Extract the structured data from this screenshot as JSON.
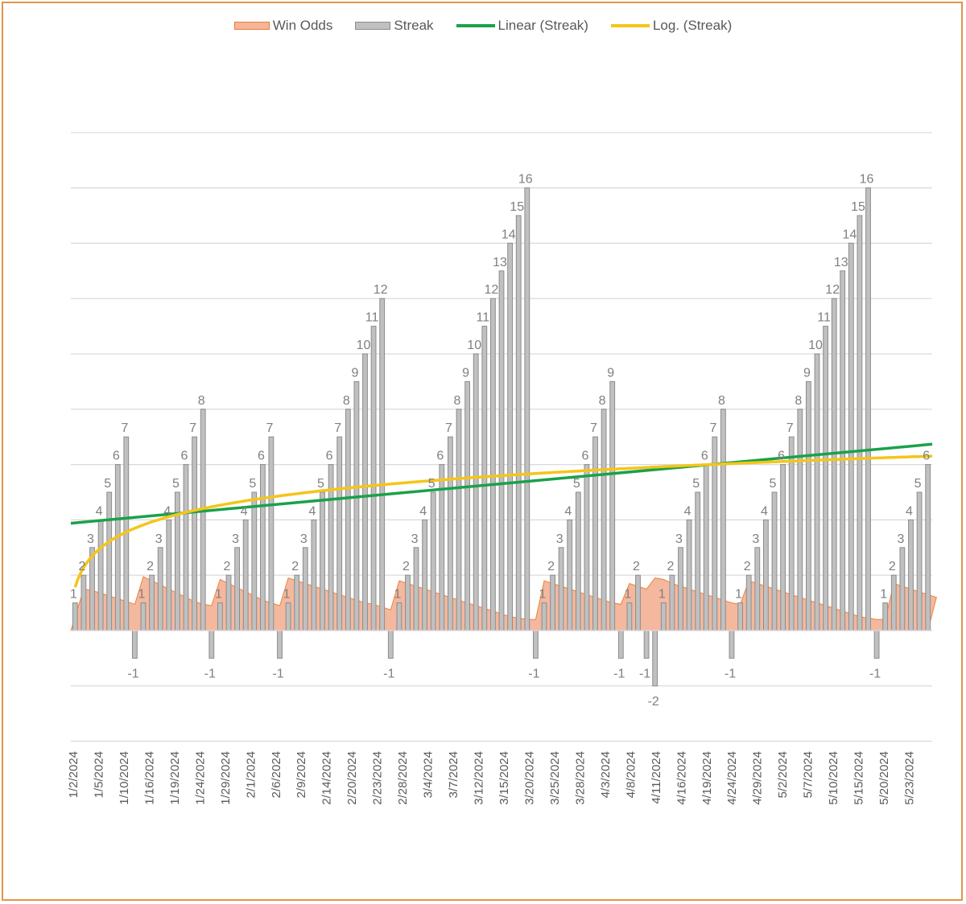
{
  "chart_data": {
    "type": "bar",
    "title": "",
    "xlabel": "",
    "ylabel": "",
    "ylim": [
      -4,
      18
    ],
    "legend_position": "top",
    "colors": {
      "win_odds_fill": "#f4b599",
      "win_odds_stroke": "#ed7d31",
      "streak_fill": "#c0c0c0",
      "streak_stroke": "#8c8c8c",
      "linear": "#1aa14a",
      "log": "#f5c518",
      "grid": "#d9d9d9",
      "label": "#7f7f7f"
    },
    "legend": [
      "Win Odds",
      "Streak",
      "Linear (Streak)",
      "Log. (Streak)"
    ],
    "tick_labels": [
      "1/2/2024",
      "1/5/2024",
      "1/10/2024",
      "1/16/2024",
      "1/19/2024",
      "1/24/2024",
      "1/29/2024",
      "2/1/2024",
      "2/6/2024",
      "2/9/2024",
      "2/14/2024",
      "2/20/2024",
      "2/23/2024",
      "2/28/2024",
      "3/4/2024",
      "3/7/2024",
      "3/12/2024",
      "3/15/2024",
      "3/20/2024",
      "3/25/2024",
      "3/28/2024",
      "4/3/2024",
      "4/8/2024",
      "4/11/2024",
      "4/16/2024",
      "4/19/2024",
      "4/24/2024",
      "4/29/2024",
      "5/2/2024",
      "5/7/2024",
      "5/10/2024",
      "5/15/2024",
      "5/20/2024",
      "5/23/2024"
    ],
    "streak": [
      1,
      2,
      3,
      4,
      5,
      6,
      7,
      -1,
      1,
      2,
      3,
      4,
      5,
      6,
      7,
      8,
      -1,
      1,
      2,
      3,
      4,
      5,
      6,
      7,
      -1,
      1,
      2,
      3,
      4,
      5,
      6,
      7,
      8,
      9,
      10,
      11,
      12,
      -1,
      1,
      2,
      3,
      4,
      5,
      6,
      7,
      8,
      9,
      10,
      11,
      12,
      13,
      14,
      15,
      16,
      -1,
      1,
      2,
      3,
      4,
      5,
      6,
      7,
      8,
      9,
      -1,
      1,
      2,
      -1,
      -2,
      1,
      2,
      3,
      4,
      5,
      6,
      7,
      8,
      -1,
      1,
      2,
      3,
      4,
      5,
      6,
      7,
      8,
      9,
      10,
      11,
      12,
      13,
      14,
      15,
      16,
      -1,
      1,
      2,
      3,
      4,
      5,
      6
    ],
    "win_odds": [
      0.5,
      1.5,
      1.45,
      1.35,
      1.25,
      1.15,
      1.05,
      0.95,
      1.95,
      1.8,
      1.65,
      1.5,
      1.35,
      1.2,
      1.05,
      0.95,
      0.9,
      1.85,
      1.7,
      1.55,
      1.4,
      1.25,
      1.1,
      1.0,
      0.9,
      1.9,
      1.8,
      1.7,
      1.6,
      1.5,
      1.4,
      1.3,
      1.2,
      1.1,
      1.0,
      0.95,
      0.85,
      0.75,
      1.8,
      1.7,
      1.6,
      1.5,
      1.4,
      1.3,
      1.2,
      1.1,
      1.0,
      0.9,
      0.8,
      0.7,
      0.6,
      0.5,
      0.45,
      0.4,
      0.4,
      1.8,
      1.7,
      1.6,
      1.5,
      1.4,
      1.3,
      1.2,
      1.1,
      1.0,
      0.95,
      1.7,
      1.6,
      1.5,
      1.9,
      1.85,
      1.7,
      1.6,
      1.5,
      1.4,
      1.3,
      1.2,
      1.1,
      1.0,
      0.95,
      1.8,
      1.7,
      1.6,
      1.5,
      1.4,
      1.3,
      1.2,
      1.1,
      1.0,
      0.9,
      0.8,
      0.7,
      0.6,
      0.5,
      0.45,
      0.4,
      0.4,
      1.7,
      1.6,
      1.5,
      1.4,
      1.3,
      1.2
    ]
  }
}
